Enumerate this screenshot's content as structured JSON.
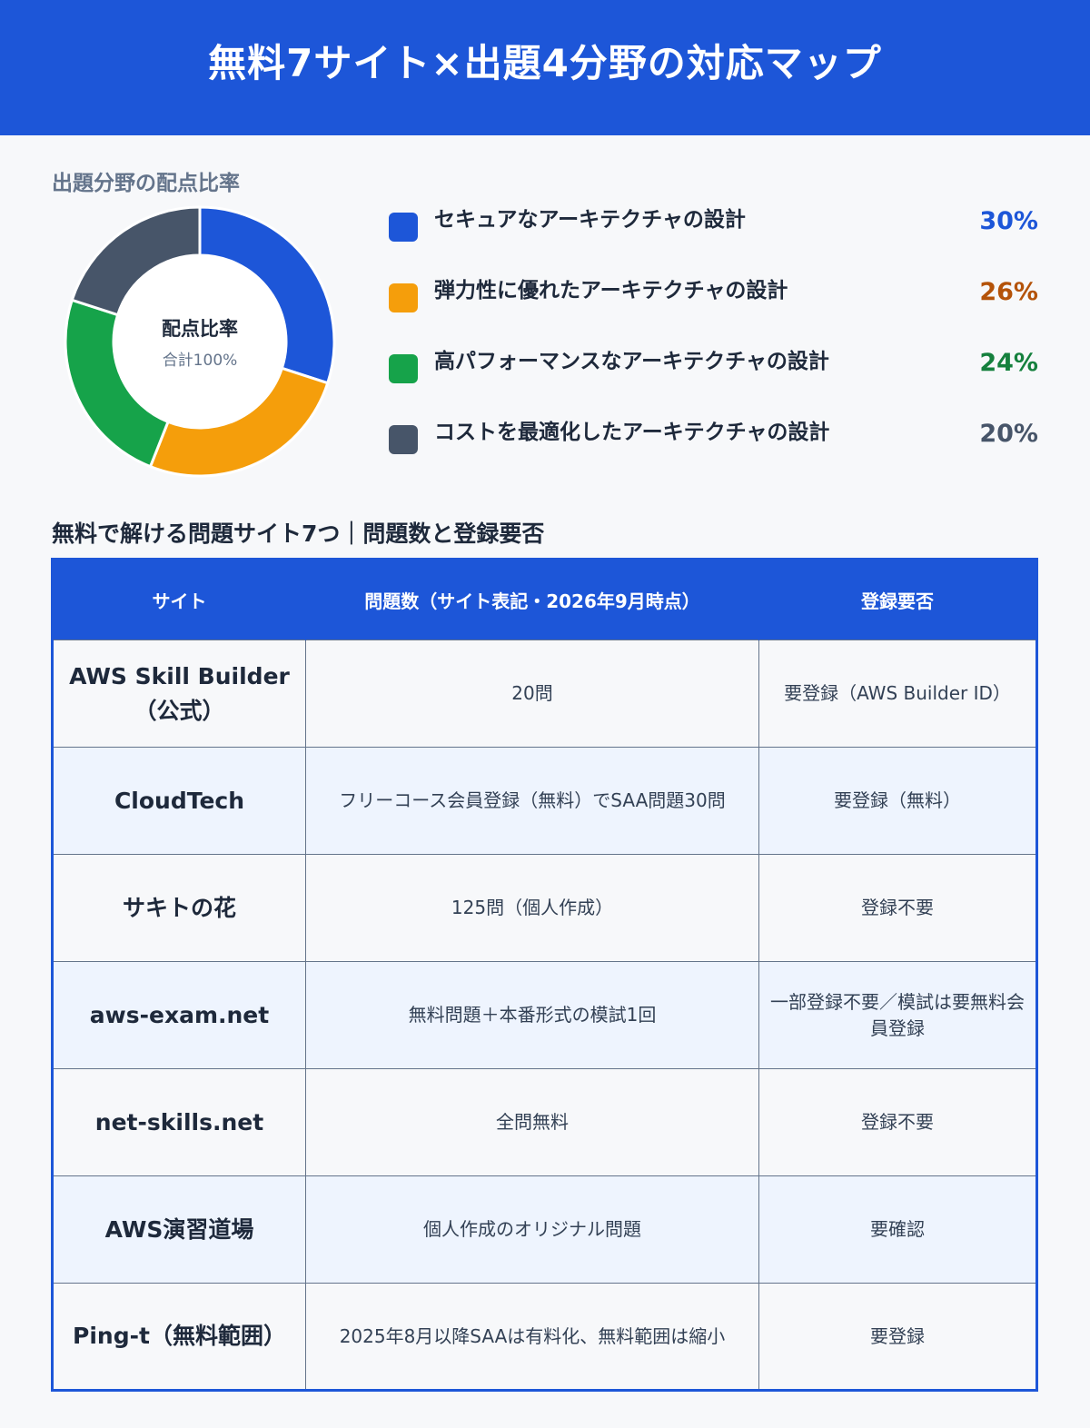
{
  "header": {
    "title": "無料7サイト×出題4分野の対応マップ"
  },
  "chart_data": {
    "type": "pie",
    "title": "出題分野の配点比率",
    "center_label": "配点比率",
    "center_sublabel": "合計100%",
    "categories": [
      "セキュアなアーキテクチャの設計",
      "弾力性に優れたアーキテクチャの設計",
      "高パフォーマンスなアーキテクチャの設計",
      "コストを最適化したアーキテクチャの設計"
    ],
    "values": [
      30,
      26,
      24,
      20
    ],
    "value_labels": [
      "30%",
      "26%",
      "24%",
      "20%"
    ],
    "colors": [
      "#1d56d8",
      "#f59e0b",
      "#16a34a",
      "#475569"
    ],
    "value_colors": [
      "#1d56d8",
      "#b45309",
      "#15803d",
      "#475569"
    ],
    "legend_position": "right"
  },
  "table": {
    "heading": "無料で解ける問題サイト7つ｜問題数と登録要否",
    "columns": [
      "サイト",
      "問題数（サイト表記・2026年9月時点）",
      "登録要否"
    ],
    "rows": [
      [
        "AWS Skill Builder（公式）",
        "20問",
        "要登録（AWS Builder ID）"
      ],
      [
        "CloudTech",
        "フリーコース会員登録（無料）でSAA問題30問",
        "要登録（無料）"
      ],
      [
        "サキトの花",
        "125問（個人作成）",
        "登録不要"
      ],
      [
        "aws-exam.net",
        "無料問題＋本番形式の模試1回",
        "一部登録不要／模試は要無料会員登録"
      ],
      [
        "net-skills.net",
        "全問無料",
        "登録不要"
      ],
      [
        "AWS演習道場",
        "個人作成のオリジナル問題",
        "要確認"
      ],
      [
        "Ping-t（無料範囲）",
        "2025年8月以降SAAは有料化、無料範囲は縮小",
        "要登録"
      ]
    ]
  }
}
